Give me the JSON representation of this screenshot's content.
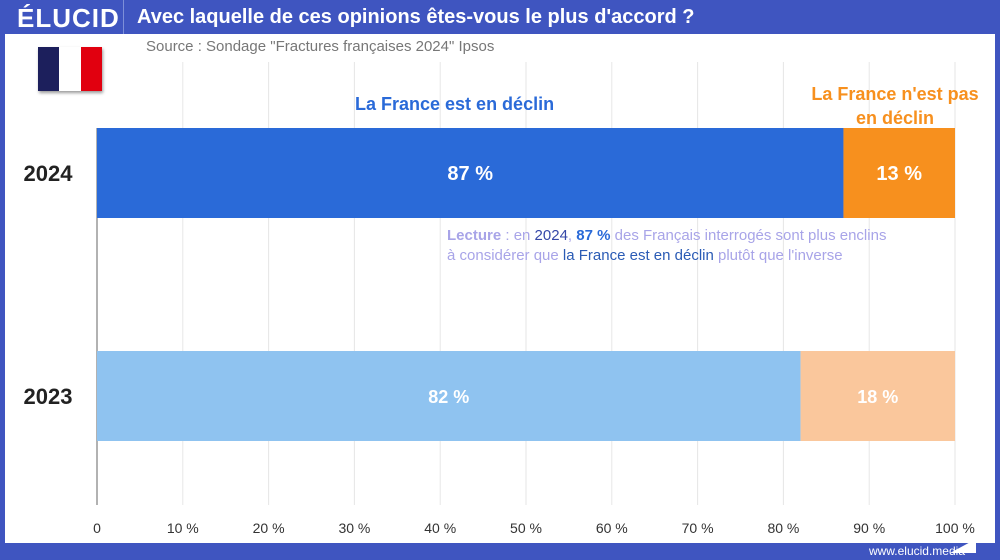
{
  "header": {
    "logo": "ÉLUCID",
    "title": "Avec laquelle de ces opinions êtes-vous le plus d'accord ?"
  },
  "source": "Source : Sondage \"Fractures françaises 2024\" Ipsos",
  "flag_colors": [
    "#1c1f5c",
    "#ffffff",
    "#e1000f"
  ],
  "note": {
    "p1": "Lecture",
    "p2": " : en ",
    "p3": "2024",
    "p4": ", ",
    "p5": "87 %",
    "p6": " des Français interrogés sont plus enclins",
    "p7": "à considérer que ",
    "p8": "la France est en déclin",
    "p9": " plutôt que l'inverse"
  },
  "footer": "www.elucid.media",
  "chart_data": {
    "type": "bar",
    "orientation": "horizontal",
    "stacked": true,
    "categories": [
      "2024",
      "2023"
    ],
    "series": [
      {
        "name": "La France est en déclin",
        "values": [
          87,
          82
        ],
        "colors": [
          "#2a6ad8",
          "#8fc3f0"
        ]
      },
      {
        "name": "La France n'est pas en déclin",
        "values": [
          13,
          18
        ],
        "colors": [
          "#f7901e",
          "#fac79c"
        ]
      }
    ],
    "value_labels": [
      [
        "87 %",
        "82 %"
      ],
      [
        "13 %",
        "18 %"
      ]
    ],
    "xlim": [
      0,
      100
    ],
    "xticks": [
      "0",
      "10 %",
      "20 %",
      "30 %",
      "40 %",
      "50 %",
      "60 %",
      "70 %",
      "80 %",
      "90 %",
      "100 %"
    ],
    "grid": true
  }
}
